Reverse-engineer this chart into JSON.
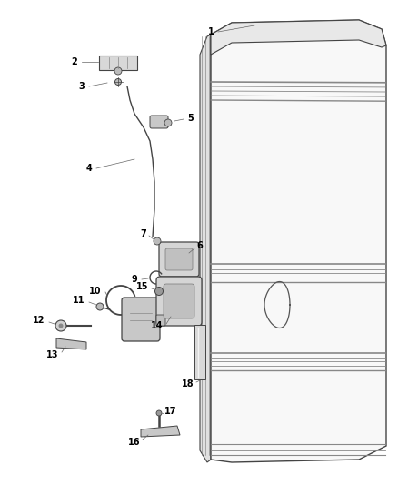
{
  "background_color": "#ffffff",
  "fig_width": 4.38,
  "fig_height": 5.33,
  "dpi": 100,
  "line_color": "#333333",
  "label_color": "#000000",
  "label_fontsize": 7.0,
  "leader_line_color": "#666666",
  "leader_linewidth": 0.5,
  "door": {
    "fill": "#f5f5f5",
    "edge": "#444444",
    "lw": 1.0
  }
}
